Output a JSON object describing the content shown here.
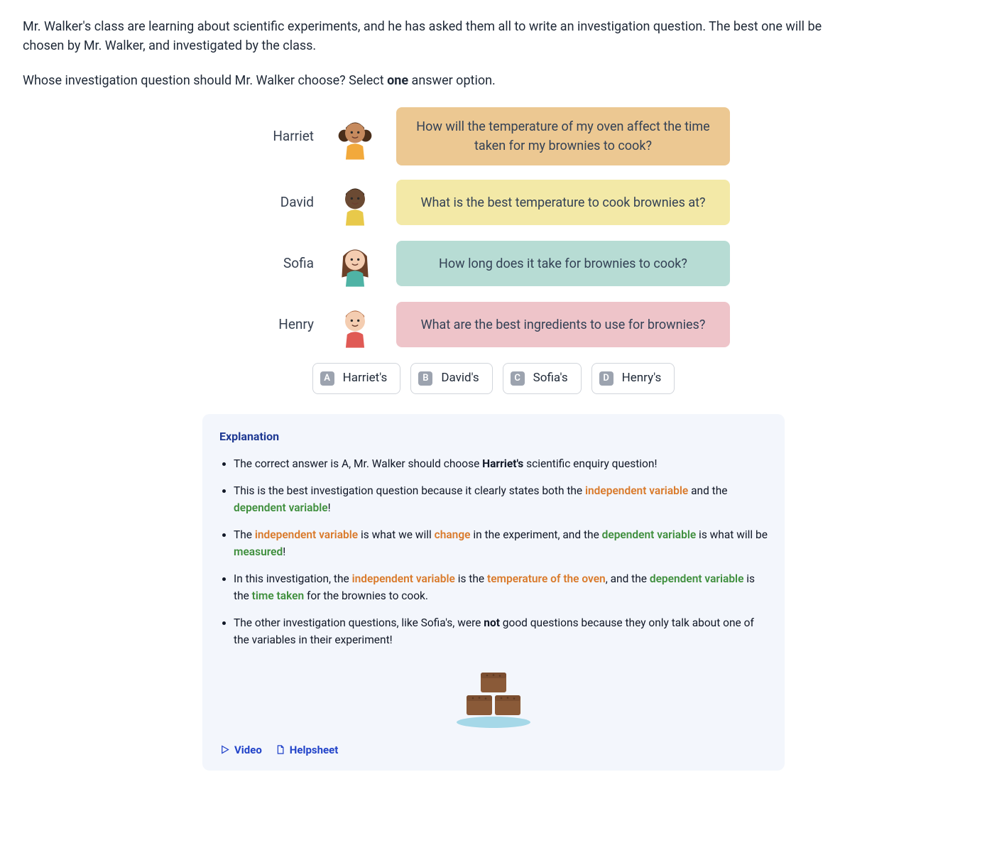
{
  "question": {
    "intro": "Mr. Walker's class are learning about scientific experiments, and he has asked them all to write an investigation question. The best one will be chosen by Mr. Walker, and investigated by the class.",
    "prompt_pre": "Whose investigation question should Mr. Walker choose? Select ",
    "prompt_bold": "one",
    "prompt_post": " answer option."
  },
  "colors": {
    "speech_harriet": "#ecc892",
    "speech_david": "#f3e9a7",
    "speech_sofia": "#b7dcd4",
    "speech_henry": "#eec4c9",
    "panel_bg": "#f3f6fc",
    "orange": "#d97a2b",
    "green": "#3f8f3d",
    "link_blue": "#2143c9"
  },
  "students": [
    {
      "name": "Harriet",
      "speech": "How will the temperature of my oven affect the time taken for my brownies to cook?",
      "bg": "#ecc892",
      "avatar": {
        "skin": "#c68a5e",
        "hair": "#4a2e1a",
        "shirt": "#f2a93b",
        "hair_style": "pigtails"
      }
    },
    {
      "name": "David",
      "speech": "What is the best temperature to cook brownies at?",
      "bg": "#f3e9a7",
      "avatar": {
        "skin": "#6b4a33",
        "hair": "#2d1e12",
        "shirt": "#e8c94a",
        "hair_style": "short"
      }
    },
    {
      "name": "Sofia",
      "speech": "How long does it take for brownies to cook?",
      "bg": "#b7dcd4",
      "avatar": {
        "skin": "#f4cdb1",
        "hair": "#6b4028",
        "shirt": "#4fb3a5",
        "hair_style": "long"
      }
    },
    {
      "name": "Henry",
      "speech": "What are the best ingredients to use for brownies?",
      "bg": "#eec4c9",
      "avatar": {
        "skin": "#f4cdb1",
        "hair": "#a85a2e",
        "shirt": "#e05a55",
        "hair_style": "short"
      }
    }
  ],
  "options": [
    {
      "letter": "A",
      "label": "Harriet's"
    },
    {
      "letter": "B",
      "label": "David's"
    },
    {
      "letter": "C",
      "label": "Sofia's"
    },
    {
      "letter": "D",
      "label": "Henry's"
    }
  ],
  "explanation": {
    "title": "Explanation",
    "bullets": [
      [
        {
          "t": "The correct answer is A, Mr. Walker should choose "
        },
        {
          "t": "Harriet's",
          "cls": "bold"
        },
        {
          "t": " scientific enquiry question!"
        }
      ],
      [
        {
          "t": "This is the best investigation question because it clearly states both the "
        },
        {
          "t": "independent variable",
          "cls": "hl-orange"
        },
        {
          "t": " and the "
        },
        {
          "t": "dependent variable",
          "cls": "hl-green"
        },
        {
          "t": "!"
        }
      ],
      [
        {
          "t": "The "
        },
        {
          "t": "independent variable",
          "cls": "hl-orange"
        },
        {
          "t": " is what we will "
        },
        {
          "t": "change",
          "cls": "hl-orange"
        },
        {
          "t": " in the experiment, and the "
        },
        {
          "t": "dependent variable",
          "cls": "hl-green"
        },
        {
          "t": " is what will be "
        },
        {
          "t": "measured",
          "cls": "hl-green"
        },
        {
          "t": "!"
        }
      ],
      [
        {
          "t": "In this investigation, the "
        },
        {
          "t": "independent variable",
          "cls": "hl-orange"
        },
        {
          "t": " is the "
        },
        {
          "t": "temperature of the oven",
          "cls": "hl-orange"
        },
        {
          "t": ", and the "
        },
        {
          "t": "dependent variable",
          "cls": "hl-green"
        },
        {
          "t": " is the "
        },
        {
          "t": "time taken",
          "cls": "hl-green"
        },
        {
          "t": " for the brownies to cook."
        }
      ],
      [
        {
          "t": "The other investigation questions, like Sofia's, were "
        },
        {
          "t": "not",
          "cls": "bold"
        },
        {
          "t": " good questions because they only talk about one of the variables in their experiment!"
        }
      ]
    ]
  },
  "illustration": {
    "brownie_color": "#8a5a38",
    "brownie_top": "#7b4e30",
    "plate_color": "#a5d8e8"
  },
  "footer": {
    "video": "Video",
    "helpsheet": "Helpsheet"
  }
}
